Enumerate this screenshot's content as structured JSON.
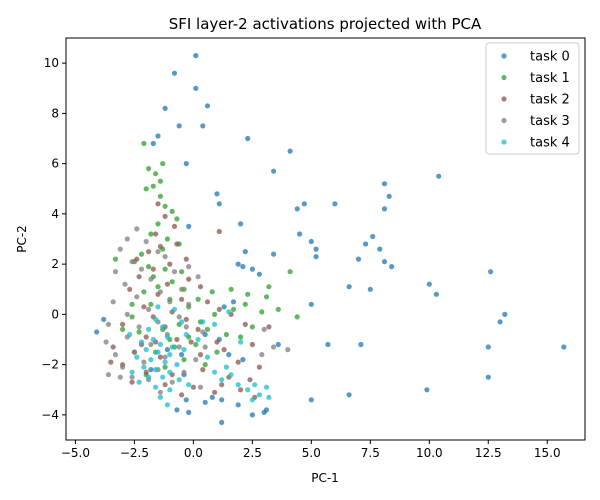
{
  "chart_data": {
    "type": "scatter",
    "title": "SFI layer-2 activations projected with PCA",
    "xlabel": "PC-1",
    "ylabel": "PC-2",
    "xlim": [
      -5.4,
      16.6
    ],
    "ylim": [
      -5.0,
      11.0
    ],
    "x_ticks": [
      -5.0,
      -2.5,
      0.0,
      2.5,
      5.0,
      7.5,
      10.0,
      12.5,
      15.0
    ],
    "x_tick_labels": [
      "−5.0",
      "−2.5",
      "0.0",
      "2.5",
      "5.0",
      "7.5",
      "10.0",
      "12.5",
      "15.0"
    ],
    "y_ticks": [
      -4,
      -2,
      0,
      2,
      4,
      6,
      8,
      10
    ],
    "y_tick_labels": [
      "−4",
      "−2",
      "0",
      "2",
      "4",
      "6",
      "8",
      "10"
    ],
    "legend_position": "top-right",
    "series": [
      {
        "name": "task 0",
        "color": "#1f77b4",
        "points": [
          [
            0.1,
            10.3
          ],
          [
            -0.8,
            9.6
          ],
          [
            0.1,
            9.0
          ],
          [
            0.6,
            8.3
          ],
          [
            -1.2,
            8.2
          ],
          [
            -0.6,
            7.5
          ],
          [
            0.4,
            7.5
          ],
          [
            -1.5,
            7.1
          ],
          [
            -1.7,
            6.8
          ],
          [
            -0.3,
            6.0
          ],
          [
            2.3,
            7.0
          ],
          [
            4.1,
            6.5
          ],
          [
            3.4,
            5.7
          ],
          [
            10.4,
            5.5
          ],
          [
            8.1,
            5.2
          ],
          [
            8.3,
            4.7
          ],
          [
            1.0,
            4.8
          ],
          [
            1.1,
            4.4
          ],
          [
            4.7,
            4.4
          ],
          [
            6.0,
            4.4
          ],
          [
            4.4,
            4.2
          ],
          [
            8.1,
            4.2
          ],
          [
            2.0,
            3.6
          ],
          [
            -0.2,
            3.5
          ],
          [
            4.5,
            3.2
          ],
          [
            5.0,
            2.9
          ],
          [
            5.2,
            2.6
          ],
          [
            7.3,
            2.8
          ],
          [
            7.6,
            3.1
          ],
          [
            7.9,
            2.6
          ],
          [
            2.2,
            2.5
          ],
          [
            3.4,
            2.4
          ],
          [
            5.2,
            2.3
          ],
          [
            7.0,
            2.2
          ],
          [
            8.1,
            2.1
          ],
          [
            8.4,
            1.9
          ],
          [
            1.9,
            2.0
          ],
          [
            2.1,
            1.9
          ],
          [
            12.6,
            1.7
          ],
          [
            2.5,
            1.8
          ],
          [
            2.8,
            1.6
          ],
          [
            10.0,
            1.2
          ],
          [
            10.3,
            0.8
          ],
          [
            6.6,
            1.1
          ],
          [
            7.5,
            1.0
          ],
          [
            13.2,
            0.0
          ],
          [
            13.0,
            -0.3
          ],
          [
            1.3,
            0.3
          ],
          [
            1.7,
            0.5
          ],
          [
            5.0,
            0.4
          ],
          [
            0.5,
            -0.8
          ],
          [
            1.1,
            -1.0
          ],
          [
            3.6,
            -1.2
          ],
          [
            5.7,
            -1.2
          ],
          [
            7.1,
            -1.2
          ],
          [
            12.5,
            -1.3
          ],
          [
            15.7,
            -1.3
          ],
          [
            1.5,
            -1.6
          ],
          [
            2.1,
            -1.8
          ],
          [
            12.5,
            -2.5
          ],
          [
            9.9,
            -3.0
          ],
          [
            6.6,
            -3.2
          ],
          [
            5.0,
            -3.4
          ],
          [
            0.8,
            -3.3
          ],
          [
            1.9,
            -3.6
          ],
          [
            0.5,
            -3.5
          ],
          [
            1.2,
            -3.4
          ],
          [
            -0.3,
            -3.4
          ],
          [
            -0.7,
            -3.8
          ],
          [
            -0.2,
            -3.9
          ],
          [
            2.5,
            -4.0
          ],
          [
            3.0,
            -3.9
          ],
          [
            3.1,
            -3.8
          ],
          [
            1.2,
            -4.3
          ],
          [
            -4.1,
            -0.7
          ],
          [
            -3.8,
            -0.2
          ],
          [
            -1.1,
            -1.4
          ],
          [
            -0.5,
            -1.6
          ],
          [
            -1.8,
            -2.2
          ],
          [
            -0.4,
            -2.4
          ]
        ]
      },
      {
        "name": "task 1",
        "color": "#2ca02c",
        "points": [
          [
            -1.3,
            6.0
          ],
          [
            -1.9,
            5.8
          ],
          [
            -1.6,
            5.6
          ],
          [
            -1.4,
            5.3
          ],
          [
            -2.0,
            5.0
          ],
          [
            -1.7,
            5.1
          ],
          [
            -2.1,
            6.8
          ],
          [
            -1.4,
            4.7
          ],
          [
            -1.2,
            4.3
          ],
          [
            -0.9,
            4.1
          ],
          [
            -0.7,
            3.8
          ],
          [
            -1.5,
            3.6
          ],
          [
            -1.8,
            3.2
          ],
          [
            -1.1,
            3.0
          ],
          [
            -0.6,
            2.8
          ],
          [
            -1.3,
            2.6
          ],
          [
            -2.2,
            2.4
          ],
          [
            -2.5,
            2.1
          ],
          [
            -3.3,
            2.2
          ],
          [
            -1.9,
            1.9
          ],
          [
            -1.2,
            1.8
          ],
          [
            -0.5,
            1.7
          ],
          [
            -1.7,
            1.5
          ],
          [
            -0.9,
            1.3
          ],
          [
            -1.5,
            1.1
          ],
          [
            -2.1,
            0.9
          ],
          [
            -0.4,
            1.0
          ],
          [
            -1.0,
            0.6
          ],
          [
            -1.8,
            0.4
          ],
          [
            -2.6,
            0.4
          ],
          [
            -0.2,
            0.3
          ],
          [
            0.2,
            0.6
          ],
          [
            0.8,
            0.9
          ],
          [
            1.6,
            1.0
          ],
          [
            2.3,
            0.8
          ],
          [
            3.1,
            0.7
          ],
          [
            3.2,
            1.1
          ],
          [
            4.1,
            1.7
          ],
          [
            4.4,
            -0.1
          ],
          [
            3.6,
            0.2
          ],
          [
            2.9,
            0.1
          ],
          [
            2.2,
            0.4
          ],
          [
            1.7,
            0.2
          ],
          [
            0.9,
            0.0
          ],
          [
            0.3,
            -0.3
          ],
          [
            -0.6,
            -0.4
          ],
          [
            -1.3,
            -0.6
          ],
          [
            -2.3,
            -0.7
          ],
          [
            -3.0,
            -0.6
          ],
          [
            -0.2,
            -0.9
          ],
          [
            0.6,
            -0.6
          ],
          [
            1.4,
            -0.8
          ],
          [
            2.5,
            -0.5
          ],
          [
            -1.0,
            -1.0
          ],
          [
            -0.8,
            -1.3
          ],
          [
            0.1,
            -1.2
          ],
          [
            -1.6,
            -1.5
          ],
          [
            -0.4,
            -1.8
          ],
          [
            0.5,
            -2.0
          ],
          [
            -1.2,
            -2.1
          ],
          [
            -2.0,
            -2.4
          ],
          [
            2.0,
            -0.9
          ],
          [
            1.0,
            -1.5
          ],
          [
            -2.6,
            -0.1
          ]
        ]
      },
      {
        "name": "task 2",
        "color": "#8c564b",
        "points": [
          [
            -1.5,
            4.4
          ],
          [
            -1.2,
            3.9
          ],
          [
            -0.8,
            3.5
          ],
          [
            1.1,
            3.3
          ],
          [
            -1.6,
            3.2
          ],
          [
            -0.7,
            2.8
          ],
          [
            -1.9,
            2.5
          ],
          [
            -1.4,
            2.7
          ],
          [
            -0.3,
            2.2
          ],
          [
            -2.4,
            2.2
          ],
          [
            -1.0,
            2.0
          ],
          [
            -1.7,
            1.8
          ],
          [
            -2.3,
            1.5
          ],
          [
            -0.2,
            1.4
          ],
          [
            -1.1,
            1.2
          ],
          [
            0.3,
            1.1
          ],
          [
            -2.7,
            1.0
          ],
          [
            -1.5,
            0.8
          ],
          [
            -0.5,
            0.6
          ],
          [
            0.6,
            0.5
          ],
          [
            -2.1,
            0.3
          ],
          [
            -0.9,
            0.1
          ],
          [
            1.1,
            0.2
          ],
          [
            -1.7,
            -0.1
          ],
          [
            -0.3,
            -0.2
          ],
          [
            1.6,
            0.0
          ],
          [
            -3.0,
            -0.4
          ],
          [
            -1.2,
            -0.5
          ],
          [
            0.2,
            -0.6
          ],
          [
            2.2,
            -0.4
          ],
          [
            3.2,
            -0.5
          ],
          [
            -2.0,
            -0.9
          ],
          [
            -0.7,
            -1.0
          ],
          [
            1.0,
            -1.1
          ],
          [
            2.5,
            -1.2
          ],
          [
            -3.4,
            -1.3
          ],
          [
            -2.5,
            -1.5
          ],
          [
            -1.4,
            -1.7
          ],
          [
            0.3,
            -1.6
          ],
          [
            1.9,
            -1.9
          ],
          [
            2.8,
            -2.1
          ],
          [
            -3.0,
            -2.0
          ],
          [
            -2.0,
            -2.3
          ],
          [
            -0.9,
            -2.4
          ],
          [
            0.4,
            -2.2
          ],
          [
            1.5,
            -2.5
          ],
          [
            2.4,
            -2.6
          ],
          [
            -2.6,
            -2.7
          ],
          [
            -1.2,
            -2.8
          ],
          [
            0.0,
            -2.9
          ],
          [
            1.2,
            -2.8
          ],
          [
            2.0,
            -3.0
          ],
          [
            -0.5,
            -3.2
          ],
          [
            0.9,
            -3.1
          ],
          [
            2.6,
            -3.3
          ],
          [
            -3.5,
            -1.9
          ],
          [
            -2.2,
            -1.2
          ],
          [
            1.3,
            -1.4
          ],
          [
            -0.1,
            -1.1
          ],
          [
            -1.6,
            -1.1
          ]
        ]
      },
      {
        "name": "task 3",
        "color": "#7f7f7f",
        "points": [
          [
            -2.8,
            3.0
          ],
          [
            -2.4,
            3.4
          ],
          [
            -2.0,
            2.9
          ],
          [
            -3.1,
            2.6
          ],
          [
            -1.5,
            2.5
          ],
          [
            -2.6,
            2.1
          ],
          [
            -1.2,
            2.3
          ],
          [
            -3.3,
            1.7
          ],
          [
            -2.2,
            1.8
          ],
          [
            -0.8,
            1.7
          ],
          [
            -1.8,
            1.4
          ],
          [
            -2.9,
            1.2
          ],
          [
            -0.5,
            1.0
          ],
          [
            -1.4,
            0.9
          ],
          [
            -2.4,
            0.7
          ],
          [
            -3.4,
            0.5
          ],
          [
            -1.0,
            0.5
          ],
          [
            -0.2,
            0.4
          ],
          [
            -1.9,
            0.2
          ],
          [
            -2.8,
            0.0
          ],
          [
            -0.6,
            -0.1
          ],
          [
            -1.5,
            -0.3
          ],
          [
            -3.6,
            -0.4
          ],
          [
            -2.3,
            -0.5
          ],
          [
            -0.3,
            -0.5
          ],
          [
            0.4,
            -0.7
          ],
          [
            -1.1,
            -0.8
          ],
          [
            -2.8,
            -0.9
          ],
          [
            -3.7,
            -1.1
          ],
          [
            -1.8,
            -1.2
          ],
          [
            -0.6,
            -1.3
          ],
          [
            0.5,
            -1.3
          ],
          [
            -2.5,
            -1.5
          ],
          [
            -3.3,
            -1.6
          ],
          [
            -1.2,
            -1.7
          ],
          [
            0.1,
            -1.8
          ],
          [
            -2.1,
            -1.9
          ],
          [
            -3.0,
            -2.1
          ],
          [
            -1.5,
            -2.2
          ],
          [
            -0.4,
            -2.3
          ],
          [
            -3.6,
            -2.4
          ],
          [
            -2.6,
            -2.5
          ],
          [
            -1.9,
            -2.6
          ],
          [
            -0.9,
            -2.7
          ],
          [
            -3.1,
            -2.5
          ],
          [
            -1.4,
            -3.1
          ],
          [
            0.3,
            -2.9
          ],
          [
            2.9,
            -1.6
          ],
          [
            3.4,
            -1.3
          ],
          [
            4.0,
            -1.4
          ],
          [
            3.0,
            -0.6
          ],
          [
            -0.2,
            1.9
          ],
          [
            0.2,
            1.5
          ]
        ]
      },
      {
        "name": "task 4",
        "color": "#17becf",
        "points": [
          [
            -1.6,
            -0.2
          ],
          [
            -1.3,
            -0.5
          ],
          [
            -1.9,
            -0.6
          ],
          [
            -1.1,
            -0.9
          ],
          [
            -1.7,
            -1.0
          ],
          [
            -2.2,
            -1.1
          ],
          [
            -1.4,
            -1.2
          ],
          [
            -0.9,
            -1.3
          ],
          [
            -2.0,
            -1.4
          ],
          [
            -1.5,
            -1.5
          ],
          [
            -1.0,
            -1.6
          ],
          [
            -2.4,
            -1.7
          ],
          [
            -1.8,
            -1.8
          ],
          [
            -1.2,
            -1.9
          ],
          [
            -0.7,
            -2.0
          ],
          [
            -2.1,
            -2.1
          ],
          [
            -1.6,
            -2.2
          ],
          [
            -1.0,
            -2.3
          ],
          [
            -2.6,
            -2.3
          ],
          [
            -1.9,
            -2.5
          ],
          [
            -1.3,
            -2.5
          ],
          [
            -0.6,
            -2.6
          ],
          [
            -2.3,
            -2.7
          ],
          [
            -1.6,
            -2.9
          ],
          [
            -1.0,
            -3.0
          ],
          [
            -0.3,
            -0.8
          ],
          [
            0.2,
            -1.0
          ],
          [
            -0.4,
            -1.4
          ],
          [
            0.6,
            -1.7
          ],
          [
            0.9,
            -2.3
          ],
          [
            1.2,
            -2.6
          ],
          [
            1.6,
            -2.4
          ],
          [
            1.9,
            -2.8
          ],
          [
            2.3,
            -3.0
          ],
          [
            2.6,
            -2.8
          ],
          [
            2.8,
            -3.2
          ],
          [
            3.1,
            -2.9
          ],
          [
            2.5,
            -3.4
          ],
          [
            3.2,
            -3.3
          ],
          [
            1.4,
            -2.1
          ],
          [
            -0.2,
            -2.8
          ],
          [
            -1.4,
            -3.3
          ],
          [
            -1.1,
            -3.6
          ],
          [
            0.4,
            -0.3
          ],
          [
            0.9,
            -0.4
          ],
          [
            1.5,
            0.1
          ],
          [
            2.0,
            -1.1
          ],
          [
            -2.7,
            -0.8
          ],
          [
            -0.8,
            0.2
          ],
          [
            -1.5,
            0.3
          ],
          [
            -0.5,
            -0.3
          ]
        ]
      }
    ]
  }
}
